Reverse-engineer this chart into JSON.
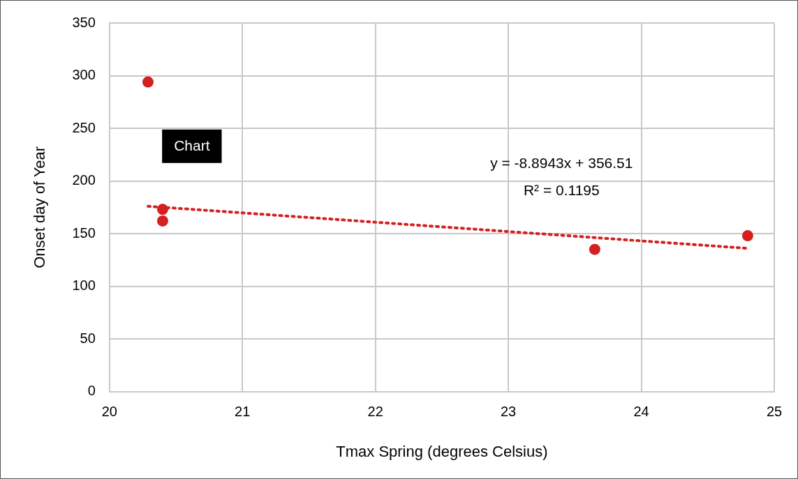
{
  "chart_data": {
    "type": "scatter",
    "xlabel": "Tmax Spring (degrees Celsius)",
    "ylabel": "Onset day of Year",
    "series": [
      {
        "type": "scatter",
        "color": "#d42020",
        "marker": "circle",
        "x": [
          20.29,
          20.4,
          20.4,
          23.65,
          24.8
        ],
        "values": [
          294,
          173,
          162,
          135,
          148
        ]
      },
      {
        "type": "line",
        "color": "#d42020",
        "marker": "none",
        "line_style": "dotted",
        "x": [
          20.29,
          24.8
        ],
        "values": [
          176,
          136
        ]
      }
    ],
    "xlim": [
      20,
      25
    ],
    "xticks": [
      20,
      21,
      22,
      23,
      24,
      25
    ],
    "ylim": [
      0,
      350
    ],
    "yticks": [
      0,
      50,
      100,
      150,
      200,
      250,
      300,
      350
    ],
    "grid": true,
    "annotations": [
      "Chart",
      "y = -8.8943x + 356.51",
      "R² = 0.1195"
    ]
  }
}
